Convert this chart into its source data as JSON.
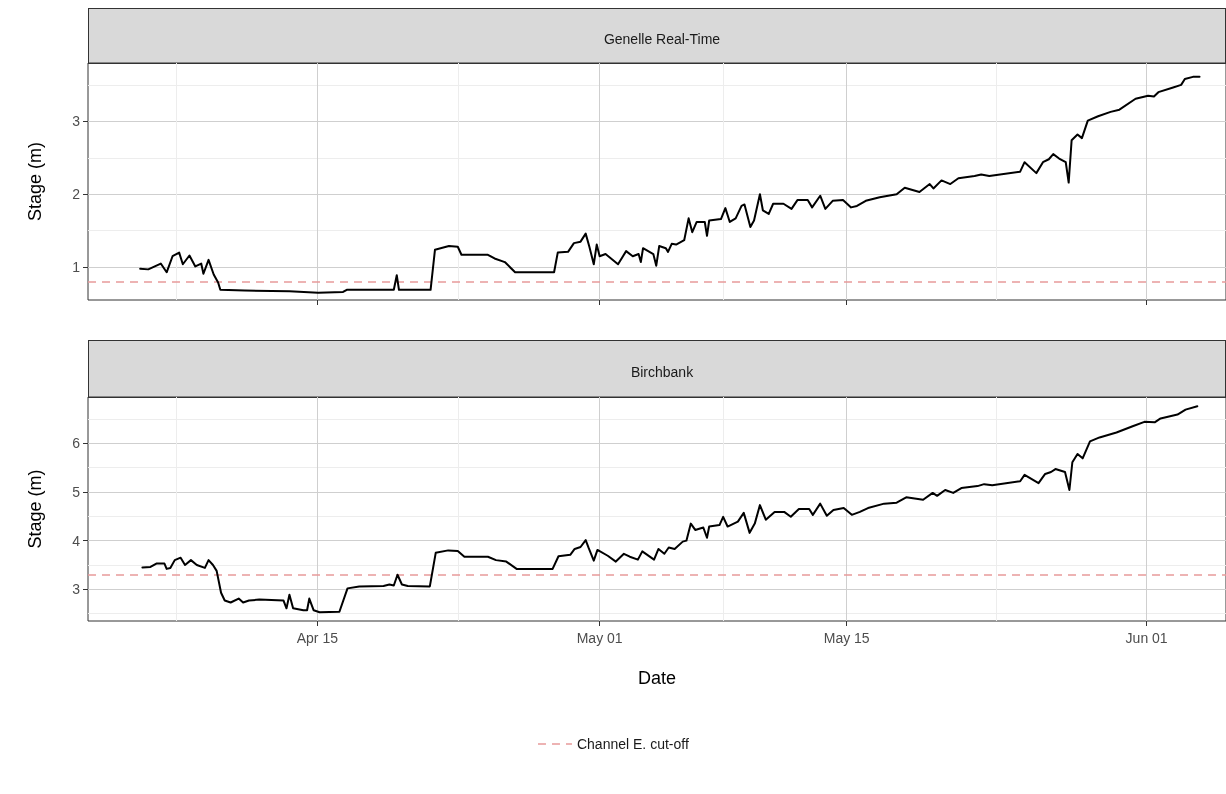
{
  "chart_data": [
    {
      "type": "line",
      "title": "Genelle Real-Time",
      "ylabel": "Stage (m)",
      "color": "#000000",
      "marker": "none",
      "grid": true,
      "tick_labels": "y",
      "x": [
        "--04-04T23:00",
        "--04-05T10:00",
        "--04-06T03:00",
        "--04-06T11:00",
        "--04-06T19:00",
        "--04-07T04:00",
        "--04-07T09:00",
        "--04-07T18:00",
        "--04-08T02:00",
        "--04-08T10:00",
        "--04-08T13:00",
        "--04-08T20:00",
        "--04-09T03:00",
        "--04-09T09:00",
        "--04-09T12:00",
        "--04-10T21:00",
        "--04-13T10:00",
        "--04-15T01:00",
        "--04-16T11:00",
        "--04-16T16:00",
        "--04-19T08:00",
        "--04-19T12:00",
        "--04-19T15:00",
        "--04-21T10:00",
        "--04-21T16:00",
        "--04-22T11:00",
        "--04-22T23:00",
        "--04-23T04:00",
        "--04-24T16:00",
        "--04-25T01:00",
        "--04-25T15:00",
        "--04-26T05:00",
        "--04-28T10:00",
        "--04-28T15:00",
        "--04-29T05:00",
        "--04-29T13:00",
        "--04-29T22:00",
        "--04-30T05:00",
        "--04-30T10:00",
        "--04-30T16:00",
        "--04-30T20:00",
        "--05-01T00:00",
        "--05-01T08:00",
        "--05-02T01:00",
        "--05-02T12:00",
        "--05-02T21:00",
        "--05-03T05:00",
        "--05-03T08:00",
        "--05-03T11:00",
        "--05-04T01:00",
        "--05-04T05:00",
        "--05-04T09:00",
        "--05-04T18:00",
        "--05-04T21:00",
        "--05-05T02:00",
        "--05-05T08:00",
        "--05-05T19:00",
        "--05-06T01:00",
        "--05-06T06:00",
        "--05-06T12:00",
        "--05-06T23:00",
        "--05-07T02:00",
        "--05-07T05:00",
        "--05-07T21:00",
        "--05-08T03:00",
        "--05-08T09:00",
        "--05-08T17:00",
        "--05-09T01:00",
        "--05-09T05:00",
        "--05-09T13:00",
        "--05-09T18:00",
        "--05-10T02:00",
        "--05-10T06:00",
        "--05-10T14:00",
        "--05-10T20:00",
        "--05-11T10:00",
        "--05-11T21:00",
        "--05-12T05:00",
        "--05-12T19:00",
        "--05-13T01:00",
        "--05-13T12:00",
        "--05-13T19:00",
        "--05-14T05:00",
        "--05-14T19:00",
        "--05-15T06:00",
        "--05-15T14:00",
        "--05-16T02:00",
        "--05-16T21:00",
        "--05-17T20:00",
        "--05-18T07:00",
        "--05-19T03:00",
        "--05-19T17:00",
        "--05-19T22:00",
        "--05-20T09:00",
        "--05-20T21:00",
        "--05-21T08:00",
        "--05-22T06:00",
        "--05-22T15:00",
        "--05-23T02:00",
        "--05-24T20:00",
        "--05-25T02:00",
        "--05-25T18:00",
        "--05-26T03:00",
        "--05-26T11:00",
        "--05-26T17:00",
        "--05-27T01:00",
        "--05-27T10:00",
        "--05-27T14:00",
        "--05-27T18:00",
        "--05-28T02:00",
        "--05-28T08:00",
        "--05-28T16:00",
        "--05-29T06:00",
        "--05-29T23:00",
        "--05-30T11:00",
        "--05-31T09:00",
        "--06-01T02:00",
        "--06-01T10:00",
        "--06-01T16:00",
        "--06-02T11:00",
        "--06-02T23:00",
        "--06-03T04:00",
        "--06-03T15:00",
        "--06-04T00:00"
      ],
      "values": [
        0.98,
        0.97,
        1.05,
        0.93,
        1.15,
        1.2,
        1.04,
        1.16,
        1.01,
        1.05,
        0.91,
        1.1,
        0.9,
        0.79,
        0.69,
        0.68,
        0.67,
        0.65,
        0.66,
        0.69,
        0.69,
        0.89,
        0.69,
        0.69,
        1.24,
        1.29,
        1.28,
        1.17,
        1.17,
        1.12,
        1.07,
        0.93,
        0.93,
        1.2,
        1.21,
        1.33,
        1.35,
        1.46,
        1.28,
        1.04,
        1.31,
        1.15,
        1.18,
        1.04,
        1.22,
        1.15,
        1.18,
        1.07,
        1.26,
        1.18,
        1.02,
        1.29,
        1.26,
        1.21,
        1.32,
        1.31,
        1.37,
        1.67,
        1.48,
        1.62,
        1.62,
        1.43,
        1.64,
        1.66,
        1.81,
        1.62,
        1.67,
        1.84,
        1.86,
        1.55,
        1.64,
        2.0,
        1.78,
        1.73,
        1.87,
        1.87,
        1.8,
        1.92,
        1.92,
        1.82,
        1.98,
        1.8,
        1.91,
        1.92,
        1.82,
        1.84,
        1.91,
        1.96,
        2.0,
        2.09,
        2.03,
        2.14,
        2.08,
        2.19,
        2.14,
        2.22,
        2.25,
        2.27,
        2.25,
        2.31,
        2.44,
        2.29,
        2.44,
        2.48,
        2.55,
        2.49,
        2.44,
        2.16,
        2.74,
        2.82,
        2.77,
        3.01,
        3.07,
        3.13,
        3.16,
        3.31,
        3.35,
        3.34,
        3.4,
        3.46,
        3.5,
        3.58,
        3.61,
        3.61
      ],
      "xlim": [
        "--04-02T00:00",
        "--06-05T12:00"
      ],
      "xticks": [
        {
          "value": "--04-15",
          "label": "Apr 15"
        },
        {
          "value": "--05-01",
          "label": "May 01"
        },
        {
          "value": "--05-15",
          "label": "May 15"
        },
        {
          "value": "--06-01",
          "label": "Jun 01"
        }
      ],
      "ylim": [
        0.55,
        3.8
      ],
      "yticks": [
        1,
        2,
        3
      ],
      "ref_lines": [
        {
          "axis": "y",
          "value": 0.8,
          "color": "#e89a9a",
          "line_style": "dashed"
        }
      ]
    },
    {
      "type": "line",
      "title": "Birchbank",
      "xlabel": "Date",
      "ylabel": "Stage (m)",
      "color": "#000000",
      "marker": "none",
      "grid": true,
      "legend": "bottom",
      "x": [
        "--04-05T02:00",
        "--04-05T13:00",
        "--04-05T21:00",
        "--04-06T08:00",
        "--04-06T11:00",
        "--04-06T16:00",
        "--04-06T22:00",
        "--04-07T06:00",
        "--04-07T12:00",
        "--04-07T20:00",
        "--04-08T04:00",
        "--04-08T15:00",
        "--04-08T20:00",
        "--04-09T02:00",
        "--04-09T07:00",
        "--04-09T13:00",
        "--04-09T18:00",
        "--04-10T02:00",
        "--04-10T13:00",
        "--04-10T19:00",
        "--04-11T03:00",
        "--04-11T17:00",
        "--04-13T02:00",
        "--04-13T06:00",
        "--04-13T10:00",
        "--04-13T15:00",
        "--04-14T05:00",
        "--04-14T10:00",
        "--04-14T13:00",
        "--04-14T19:00",
        "--04-15T03:00",
        "--04-16T06:00",
        "--04-16T17:00",
        "--04-17T09:00",
        "--04-18T18:00",
        "--04-19T02:00",
        "--04-19T08:00",
        "--04-19T13:00",
        "--04-19T19:00",
        "--04-20T03:00",
        "--04-21T09:00",
        "--04-21T17:00",
        "--04-22T10:00",
        "--04-22T23:00",
        "--04-23T08:00",
        "--04-24T16:00",
        "--04-25T03:00",
        "--04-25T17:00",
        "--04-26T07:00",
        "--04-28T08:00",
        "--04-28T16:00",
        "--04-29T08:00",
        "--04-29T14:00",
        "--04-29T22:00",
        "--04-30T05:00",
        "--04-30T09:00",
        "--04-30T16:00",
        "--04-30T21:00",
        "--05-01T11:00",
        "--05-01T22:00",
        "--05-02T09:00",
        "--05-02T17:00",
        "--05-03T04:00",
        "--05-03T10:00",
        "--05-04T02:00",
        "--05-04T08:00",
        "--05-04T16:00",
        "--05-04T22:00",
        "--05-05T06:00",
        "--05-05T17:00",
        "--05-05T22:00",
        "--05-06T04:00",
        "--05-06T10:00",
        "--05-06T21:00",
        "--05-07T02:00",
        "--05-07T05:00",
        "--05-07T19:00",
        "--05-08T00:00",
        "--05-08T06:00",
        "--05-08T20:00",
        "--05-09T04:00",
        "--05-09T12:00",
        "--05-09T19:00",
        "--05-10T02:00",
        "--05-10T10:00",
        "--05-10T22:00",
        "--05-11T11:00",
        "--05-11T20:00",
        "--05-12T07:00",
        "--05-12T21:00",
        "--05-13T02:00",
        "--05-13T12:00",
        "--05-13T21:00",
        "--05-14T06:00",
        "--05-14T20:00",
        "--05-15T07:00",
        "--05-15T18:00",
        "--05-16T05:00",
        "--05-17T03:00",
        "--05-17T20:00",
        "--05-18T09:00",
        "--05-19T08:00",
        "--05-19T21:00",
        "--05-20T03:00",
        "--05-20T14:00",
        "--05-21T01:00",
        "--05-21T12:00",
        "--05-22T10:00",
        "--05-22T19:00",
        "--05-23T06:00",
        "--05-24T20:00",
        "--05-25T02:00",
        "--05-25T21:00",
        "--05-26T06:00",
        "--05-26T14:00",
        "--05-26T20:00",
        "--05-27T09:00",
        "--05-27T15:00",
        "--05-27T19:00",
        "--05-28T02:00",
        "--05-28T09:00",
        "--05-28T19:00",
        "--05-29T08:00",
        "--05-30T07:00",
        "--05-31T05:00",
        "--05-31T21:00",
        "--06-01T11:00",
        "--06-01T19:00",
        "--06-02T18:00",
        "--06-03T05:00",
        "--06-03T21:00"
      ],
      "values": [
        3.45,
        3.46,
        3.53,
        3.53,
        3.42,
        3.44,
        3.6,
        3.65,
        3.5,
        3.6,
        3.5,
        3.44,
        3.6,
        3.5,
        3.38,
        2.93,
        2.77,
        2.73,
        2.81,
        2.73,
        2.77,
        2.79,
        2.77,
        2.61,
        2.89,
        2.61,
        2.57,
        2.57,
        2.81,
        2.57,
        2.53,
        2.54,
        3.02,
        3.06,
        3.07,
        3.1,
        3.08,
        3.3,
        3.1,
        3.07,
        3.06,
        3.75,
        3.8,
        3.79,
        3.67,
        3.67,
        3.6,
        3.57,
        3.42,
        3.42,
        3.68,
        3.71,
        3.83,
        3.87,
        4.01,
        3.85,
        3.59,
        3.81,
        3.69,
        3.57,
        3.73,
        3.67,
        3.61,
        3.78,
        3.61,
        3.83,
        3.73,
        3.86,
        3.83,
        3.98,
        4.0,
        4.35,
        4.22,
        4.27,
        4.06,
        4.29,
        4.32,
        4.49,
        4.29,
        4.39,
        4.57,
        4.16,
        4.35,
        4.73,
        4.43,
        4.59,
        4.59,
        4.49,
        4.65,
        4.65,
        4.53,
        4.76,
        4.51,
        4.63,
        4.67,
        4.53,
        4.59,
        4.67,
        4.76,
        4.78,
        4.89,
        4.84,
        4.98,
        4.92,
        5.04,
        4.98,
        5.08,
        5.12,
        5.16,
        5.14,
        5.22,
        5.35,
        5.18,
        5.37,
        5.41,
        5.47,
        5.41,
        5.04,
        5.61,
        5.78,
        5.69,
        6.04,
        6.12,
        6.22,
        6.35,
        6.44,
        6.43,
        6.51,
        6.59,
        6.69,
        6.76
      ],
      "xlim": [
        "--04-02T00:00",
        "--06-05T12:00"
      ],
      "xticks": [
        {
          "value": "--04-15",
          "label": "Apr 15"
        },
        {
          "value": "--05-01",
          "label": "May 01"
        },
        {
          "value": "--05-15",
          "label": "May 15"
        },
        {
          "value": "--06-01",
          "label": "Jun 01"
        }
      ],
      "ylim": [
        2.35,
        6.95
      ],
      "yticks": [
        3,
        4,
        5,
        6
      ],
      "ref_lines": [
        {
          "axis": "y",
          "value": 3.3,
          "label": "Channel E. cut-off",
          "color": "#e89a9a",
          "line_style": "dashed"
        }
      ]
    }
  ]
}
